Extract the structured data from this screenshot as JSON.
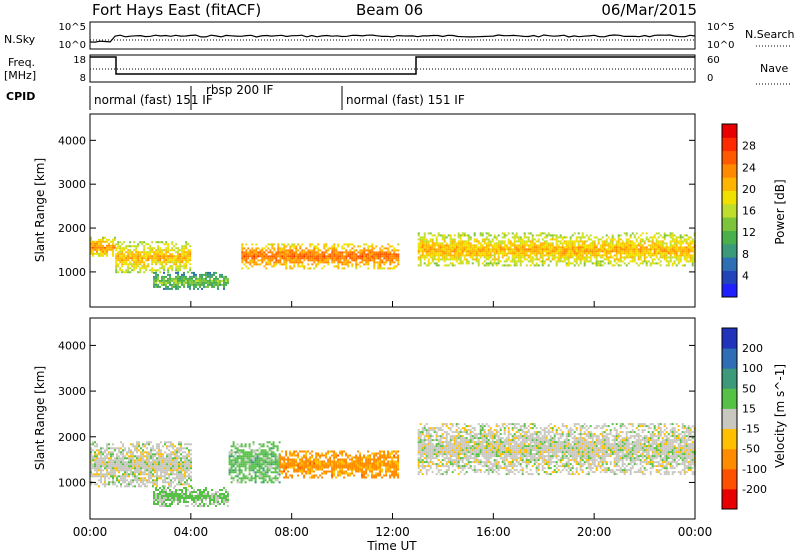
{
  "header": {
    "site": "Fort Hays East (fitACF)",
    "beam": "Beam 06",
    "date": "06/Mar/2015"
  },
  "panels": {
    "noise_left_label": "N.Sky",
    "noise_right_label": "N.Search",
    "noise_scale_top": "10^5",
    "noise_scale_bottom": "10^0",
    "freq_label_top": "Freq.",
    "freq_label_bottom": "[MHz]",
    "freq_ticks": [
      "18",
      "8"
    ],
    "nave_label": "Nave",
    "nave_ticks": [
      "60",
      "0"
    ],
    "cpid_label": "CPID",
    "cpid_segments": [
      {
        "text": "normal (fast) 151 IF",
        "start_hour": 0.0
      },
      {
        "text": "rbsp 200 IF",
        "start_hour": 4.0
      },
      {
        "text": "normal (fast) 151 IF",
        "start_hour": 10.0
      }
    ]
  },
  "power_colorbar": {
    "label": "Power [dB]",
    "ticks": [
      "4",
      "8",
      "12",
      "16",
      "20",
      "24",
      "28"
    ],
    "colors": [
      "#1f1fff",
      "#2244bb",
      "#2e6eb5",
      "#3a9a7a",
      "#49b04b",
      "#7cc43a",
      "#bedd2c",
      "#f0e000",
      "#ffb400",
      "#ff8a00",
      "#ff5a00",
      "#ff2a00",
      "#e80000"
    ]
  },
  "velocity_colorbar": {
    "label": "Velocity [m s^-1]",
    "ticks": [
      "200",
      "100",
      "50",
      "15",
      "-15",
      "-50",
      "-100",
      "-200"
    ],
    "colors": [
      "#2233bb",
      "#2e6eb5",
      "#3a9a7a",
      "#55c145",
      "#c8c8c0",
      "#ffc000",
      "#ff8c00",
      "#ff5000",
      "#e80000"
    ]
  },
  "axes": {
    "ylabel": "Slant Range [km]",
    "xlabel": "Time UT",
    "yticks": [
      "1000",
      "2000",
      "3000",
      "4000"
    ],
    "xticks": [
      "00:00",
      "04:00",
      "08:00",
      "12:00",
      "16:00",
      "20:00",
      "00:00"
    ]
  },
  "chart_data": [
    {
      "type": "heatmap",
      "title": "Fort Hays East (fitACF)",
      "quantity": "Power",
      "unit": "dB",
      "xlabel": "Time UT",
      "ylabel": "Slant Range [km]",
      "xlim_hours": [
        0,
        24
      ],
      "ylim_km": [
        200,
        4600
      ],
      "colorbar_range": [
        0,
        32
      ],
      "echo_bands": [
        {
          "t": [
            0.0,
            1.0
          ],
          "range_km": [
            1350,
            1800
          ],
          "power_db": 24
        },
        {
          "t": [
            1.0,
            4.0
          ],
          "range_km": [
            1000,
            1700
          ],
          "power_db": 22
        },
        {
          "t": [
            2.5,
            5.5
          ],
          "range_km": [
            600,
            1000
          ],
          "power_db": 14
        },
        {
          "t": [
            6.0,
            12.2
          ],
          "range_km": [
            1100,
            1650
          ],
          "power_db": 26
        },
        {
          "t": [
            13.0,
            24.0
          ],
          "range_km": [
            1150,
            1900
          ],
          "power_db": 22
        }
      ]
    },
    {
      "type": "heatmap",
      "title": "",
      "quantity": "Velocity",
      "unit": "m s^-1",
      "xlabel": "Time UT",
      "ylabel": "Slant Range [km]",
      "xlim_hours": [
        0,
        24
      ],
      "ylim_km": [
        200,
        4600
      ],
      "colorbar_range": [
        -200,
        200
      ],
      "echo_bands": [
        {
          "t": [
            0.0,
            4.0
          ],
          "range_km": [
            900,
            1900
          ],
          "velocity_ms": 0
        },
        {
          "t": [
            2.5,
            5.5
          ],
          "range_km": [
            500,
            900
          ],
          "velocity_ms": 40
        },
        {
          "t": [
            5.5,
            7.5
          ],
          "range_km": [
            1000,
            1900
          ],
          "velocity_ms": 45
        },
        {
          "t": [
            7.5,
            12.2
          ],
          "range_km": [
            1100,
            1700
          ],
          "velocity_ms": -90
        },
        {
          "t": [
            13.0,
            24.0
          ],
          "range_km": [
            1200,
            2300
          ],
          "velocity_ms": 0
        }
      ]
    }
  ]
}
